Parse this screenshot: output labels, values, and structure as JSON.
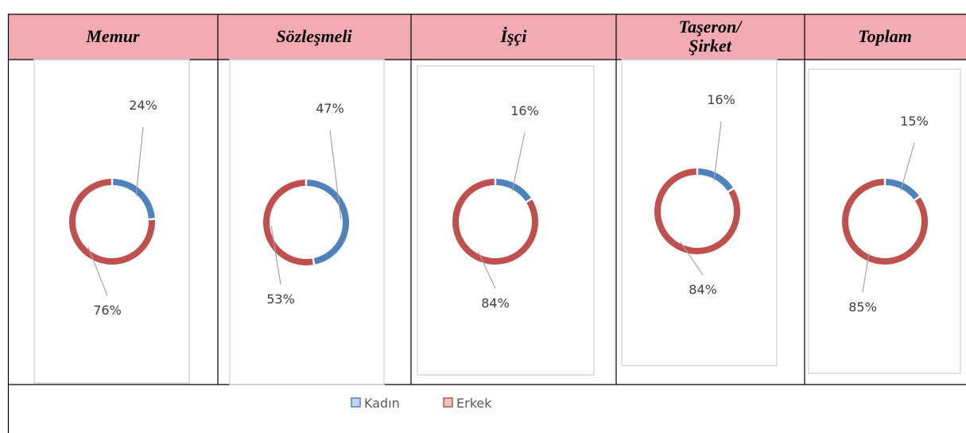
{
  "table": {
    "headers": [
      "Memur",
      "Sözleşmeli",
      "İşçi",
      "Taşeron/\nŞirket",
      "Toplam"
    ]
  },
  "chart_data": [
    {
      "type": "pie",
      "donut": true,
      "categories": [
        "Kadın",
        "Erkek"
      ],
      "colors": [
        "#4f81bd",
        "#c0504d"
      ],
      "values": [
        24,
        76
      ],
      "value_labels": [
        "24%",
        "76%"
      ]
    },
    {
      "type": "pie",
      "donut": true,
      "categories": [
        "Kadın",
        "Erkek"
      ],
      "colors": [
        "#4f81bd",
        "#c0504d"
      ],
      "values": [
        47,
        53
      ],
      "value_labels": [
        "47%",
        "53%"
      ]
    },
    {
      "type": "pie",
      "donut": true,
      "categories": [
        "Kadın",
        "Erkek"
      ],
      "colors": [
        "#4f81bd",
        "#c0504d"
      ],
      "values": [
        16,
        84
      ],
      "value_labels": [
        "16%",
        "84%"
      ]
    },
    {
      "type": "pie",
      "donut": true,
      "categories": [
        "Kadın",
        "Erkek"
      ],
      "colors": [
        "#4f81bd",
        "#c0504d"
      ],
      "values": [
        16,
        84
      ],
      "value_labels": [
        "16%",
        "84%"
      ]
    },
    {
      "type": "pie",
      "donut": true,
      "categories": [
        "Kadın",
        "Erkek"
      ],
      "colors": [
        "#4f81bd",
        "#c0504d"
      ],
      "values": [
        15,
        85
      ],
      "value_labels": [
        "15%",
        "85%"
      ]
    }
  ]
}
